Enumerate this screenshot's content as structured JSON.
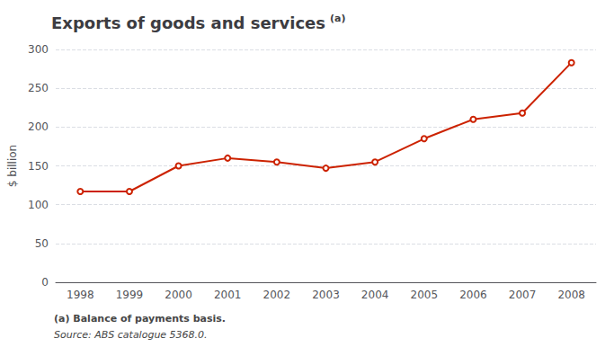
{
  "chart_data": {
    "type": "line",
    "title": "Exports of goods and services",
    "title_superscript": "(a)",
    "ylabel": "$ billion",
    "categories": [
      "1998",
      "1999",
      "2000",
      "2001",
      "2002",
      "2003",
      "2004",
      "2005",
      "2006",
      "2007",
      "2008"
    ],
    "values": [
      117,
      117,
      150,
      160,
      155,
      147,
      155,
      185,
      210,
      218,
      283
    ],
    "color": "#cc2200",
    "ylim": [
      0,
      300
    ],
    "yticks": [
      0,
      50,
      100,
      150,
      200,
      250,
      300
    ],
    "grid": true,
    "annotations": [
      "(a) Balance of payments basis.",
      "Source: ABS catalogue 5368.0."
    ]
  }
}
